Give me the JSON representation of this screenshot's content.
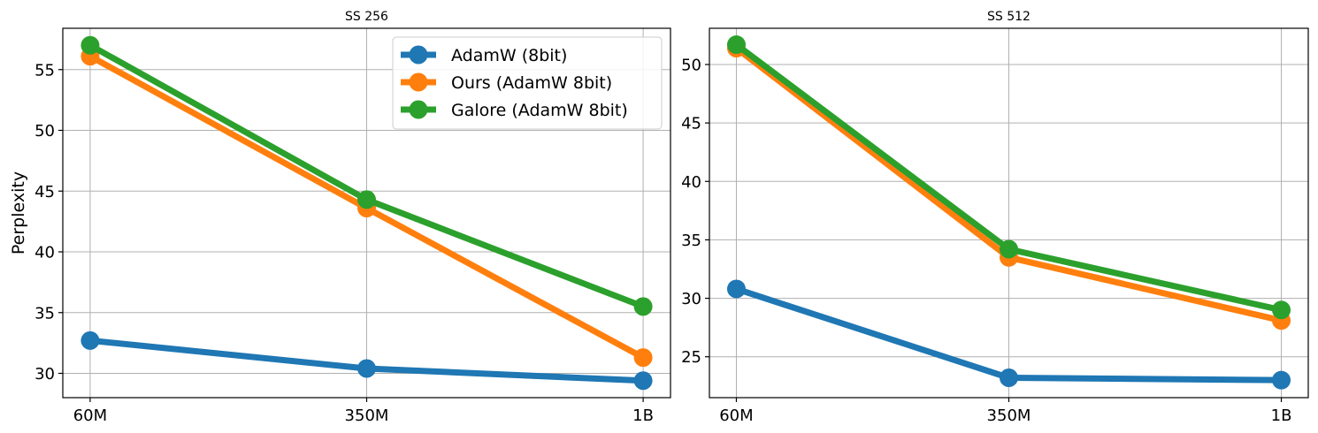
{
  "chart_data": [
    {
      "type": "line",
      "title": "SS 256",
      "xlabel": "",
      "ylabel": "Perplexity",
      "categories": [
        "60M",
        "350M",
        "1B"
      ],
      "ylim": [
        28,
        58.4
      ],
      "yticks": [
        30,
        35,
        40,
        45,
        50,
        55
      ],
      "grid": true,
      "legend": "top-right",
      "series": [
        {
          "name": "AdamW (8bit)",
          "color": "#1f77b4",
          "values": [
            32.7,
            30.4,
            29.4
          ]
        },
        {
          "name": "Ours (AdamW 8bit)",
          "color": "#ff7f0e",
          "values": [
            56.1,
            43.6,
            31.3
          ]
        },
        {
          "name": "Galore (AdamW 8bit)",
          "color": "#2ca02c",
          "values": [
            57.0,
            44.3,
            35.5
          ]
        }
      ]
    },
    {
      "type": "line",
      "title": "SS 512",
      "xlabel": "",
      "ylabel": "",
      "categories": [
        "60M",
        "350M",
        "1B"
      ],
      "ylim": [
        21.5,
        53.1
      ],
      "yticks": [
        25,
        30,
        35,
        40,
        45,
        50
      ],
      "grid": true,
      "legend": "none",
      "series": [
        {
          "name": "AdamW (8bit)",
          "color": "#1f77b4",
          "values": [
            30.8,
            23.2,
            23.0
          ]
        },
        {
          "name": "Ours (AdamW 8bit)",
          "color": "#ff7f0e",
          "values": [
            51.4,
            33.5,
            28.1
          ]
        },
        {
          "name": "Galore (AdamW 8bit)",
          "color": "#2ca02c",
          "values": [
            51.7,
            34.2,
            29.0
          ]
        }
      ]
    }
  ]
}
